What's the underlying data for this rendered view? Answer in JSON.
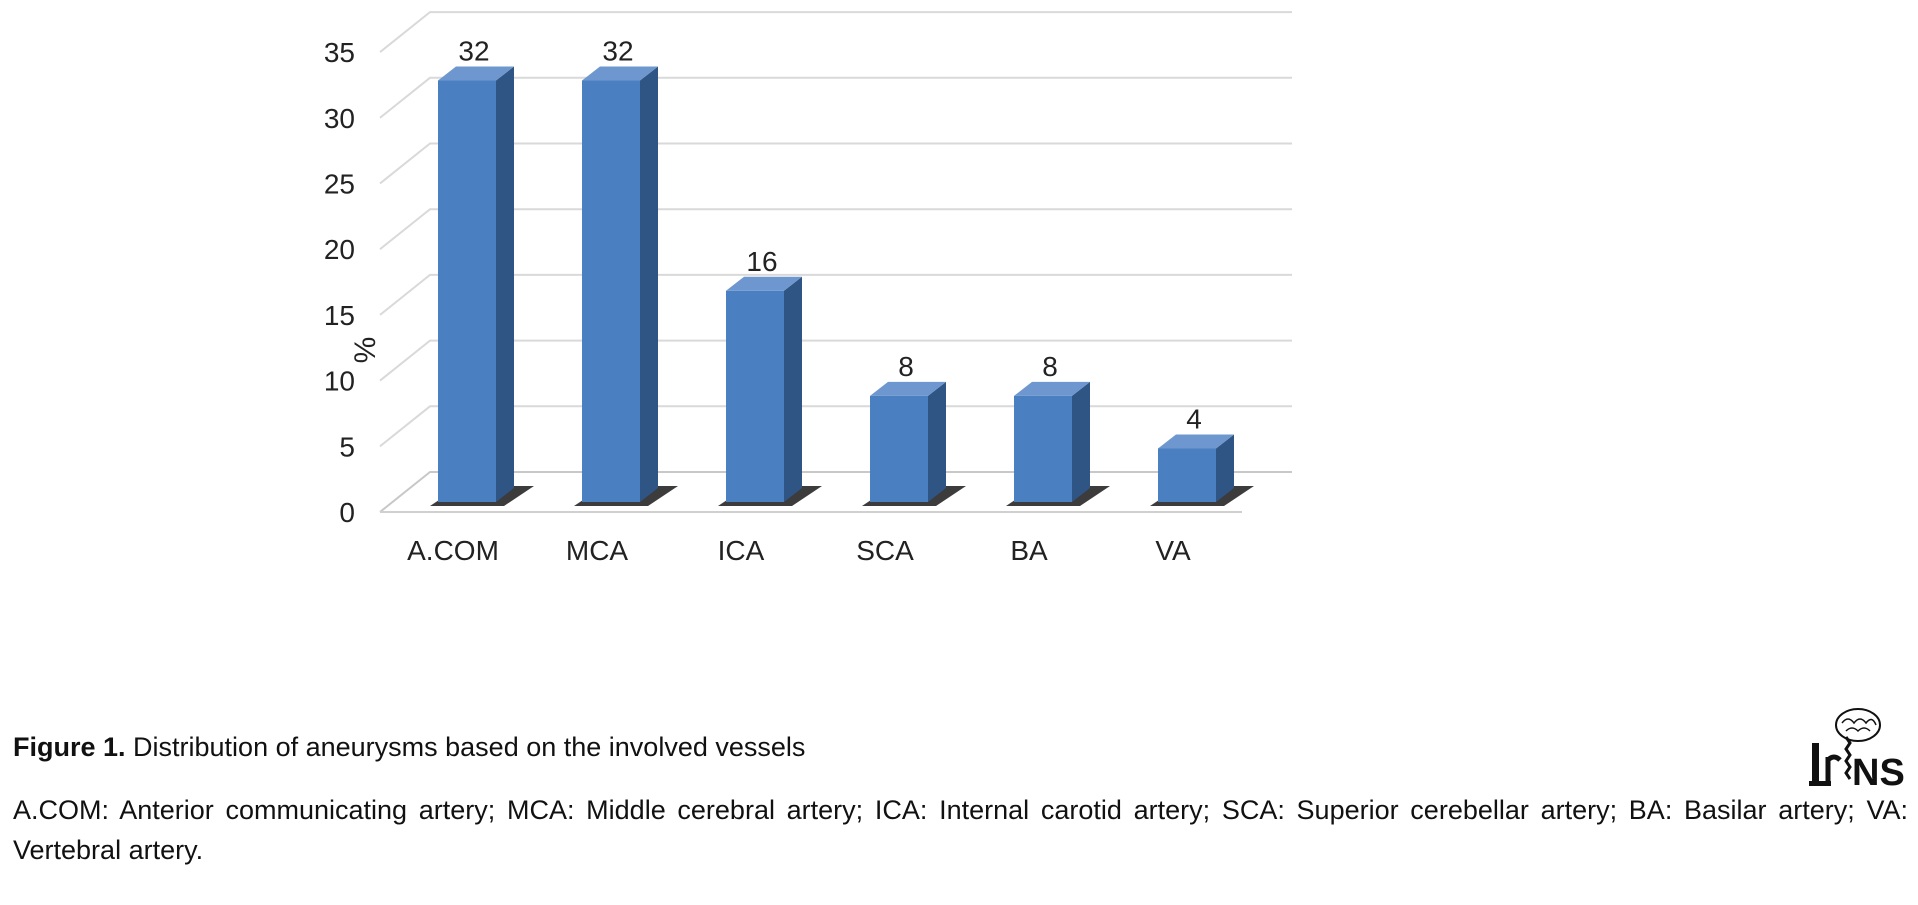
{
  "chart_data": {
    "type": "bar",
    "categories": [
      "A.COM",
      "MCA",
      "ICA",
      "SCA",
      "BA",
      "VA"
    ],
    "values": [
      32,
      32,
      16,
      8,
      8,
      4
    ],
    "data_labels": [
      "32",
      "32",
      "16",
      "8",
      "8",
      "4"
    ],
    "ylabel": "%",
    "xlabel": "",
    "ylim": [
      0,
      35
    ],
    "yticks": [
      0,
      5,
      10,
      15,
      20,
      25,
      30,
      35
    ],
    "style": "3d-column",
    "grid": true,
    "legend": "none",
    "colors": {
      "bar_front": "#4a7fc1",
      "bar_side": "#2f5585",
      "bar_top": "#6e97cf",
      "grid": "#d9d9d9",
      "tick_text": "#222222"
    }
  },
  "caption": {
    "label": "Figure 1.",
    "text": " Distribution of aneurysms based on the involved vessels"
  },
  "footnote": "A.COM: Anterior communicating artery; MCA: Middle cerebral artery; ICA: Internal carotid artery; SCA: Superior cerebellar artery; BA: Basilar artery; VA: Vertebral artery.",
  "logo": {
    "text": "IrJNS",
    "icon": "brain-spine-logo"
  }
}
